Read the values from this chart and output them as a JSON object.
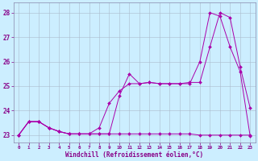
{
  "xlabel": "Windchill (Refroidissement éolien,°C)",
  "xlim": [
    -0.5,
    23.5
  ],
  "ylim": [
    22.7,
    28.4
  ],
  "xticks": [
    0,
    1,
    2,
    3,
    4,
    5,
    6,
    7,
    8,
    9,
    10,
    11,
    12,
    13,
    14,
    15,
    16,
    17,
    18,
    19,
    20,
    21,
    22,
    23
  ],
  "yticks": [
    23,
    24,
    25,
    26,
    27,
    28
  ],
  "background_color": "#cceeff",
  "line_color": "#aa00aa",
  "grid_color": "#aabbcc",
  "line1_x": [
    0,
    1,
    2,
    3,
    4,
    5,
    6,
    7,
    8,
    9,
    10,
    11,
    12,
    13,
    14,
    15,
    16,
    17,
    18,
    19,
    20,
    21,
    22,
    23
  ],
  "line1_y": [
    23.0,
    23.55,
    23.55,
    23.3,
    23.15,
    23.05,
    23.05,
    23.05,
    23.05,
    23.05,
    23.05,
    23.05,
    23.05,
    23.05,
    23.05,
    23.05,
    23.05,
    23.05,
    23.0,
    23.0,
    23.0,
    23.0,
    23.0,
    23.0
  ],
  "line2_x": [
    0,
    1,
    2,
    3,
    4,
    5,
    6,
    7,
    8,
    9,
    10,
    11,
    12,
    13,
    14,
    15,
    16,
    17,
    18,
    19,
    20,
    21,
    22,
    23
  ],
  "line2_y": [
    23.0,
    23.55,
    23.55,
    23.3,
    23.15,
    23.05,
    23.05,
    23.05,
    23.05,
    23.05,
    24.6,
    25.5,
    25.1,
    25.15,
    25.1,
    25.1,
    25.1,
    25.1,
    26.0,
    28.0,
    27.85,
    26.6,
    25.6,
    22.95
  ],
  "line3_x": [
    0,
    1,
    2,
    3,
    4,
    5,
    6,
    7,
    8,
    9,
    10,
    11,
    12,
    13,
    14,
    15,
    16,
    17,
    18,
    19,
    20,
    21,
    22,
    23
  ],
  "line3_y": [
    23.0,
    23.55,
    23.55,
    23.3,
    23.15,
    23.05,
    23.05,
    23.05,
    23.3,
    24.3,
    24.8,
    25.1,
    25.1,
    25.15,
    25.1,
    25.1,
    25.1,
    25.15,
    25.15,
    26.6,
    28.0,
    27.8,
    25.8,
    24.1
  ]
}
